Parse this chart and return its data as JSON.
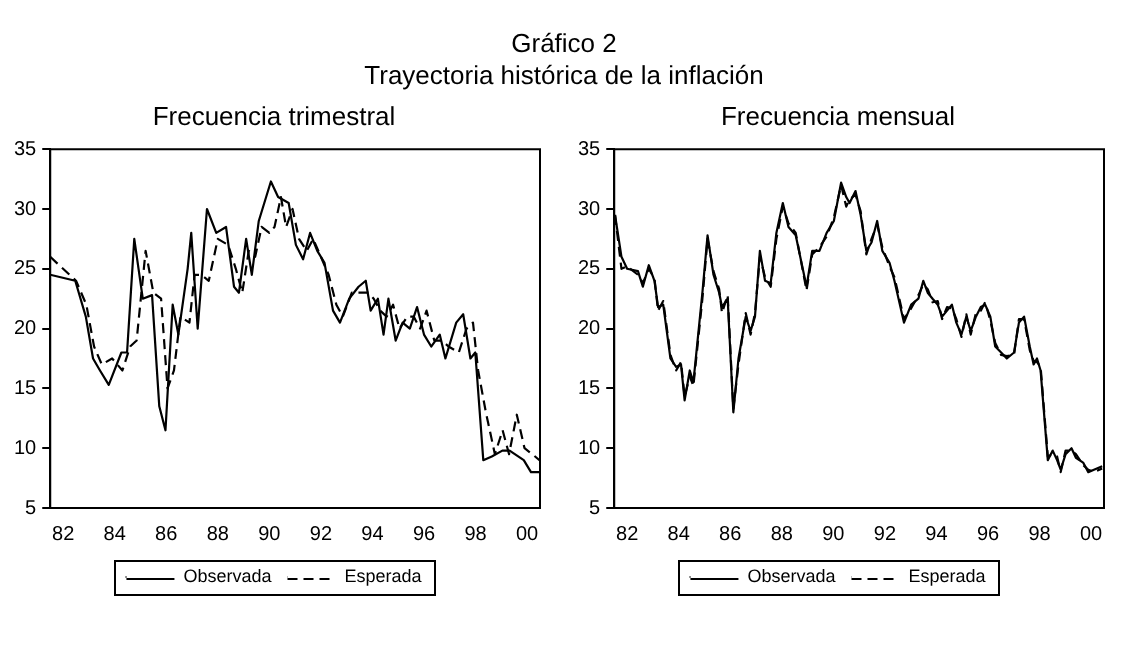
{
  "chart_data": [
    {
      "type": "line",
      "title": "Frecuencia trimestral",
      "annotations": [
        "Gráfico 2",
        "Trayectoria histórica de la inflación"
      ],
      "legend": "bottom",
      "marker": "none",
      "xlim": [
        1981.5,
        2000.5
      ],
      "xticks": [
        {
          "value": 1982,
          "label": "82"
        },
        {
          "value": 1984,
          "label": "84"
        },
        {
          "value": 1986,
          "label": "86"
        },
        {
          "value": 1988,
          "label": "88"
        },
        {
          "value": 1990,
          "label": "90"
        },
        {
          "value": 1992,
          "label": "92"
        },
        {
          "value": 1994,
          "label": "94"
        },
        {
          "value": 1996,
          "label": "96"
        },
        {
          "value": 1998,
          "label": "98"
        },
        {
          "value": 2000,
          "label": "00"
        }
      ],
      "ylim": [
        5,
        35
      ],
      "yticks": [
        5,
        10,
        15,
        20,
        25,
        30,
        35
      ],
      "series": [
        {
          "name": "Observada",
          "color": "#000000",
          "line_style": "solid",
          "x": [
            1981.5,
            1982.47,
            1982.88,
            1983.16,
            1983.43,
            1983.77,
            1984.26,
            1984.48,
            1984.76,
            1985.09,
            1985.45,
            1985.73,
            1985.97,
            1986.25,
            1986.47,
            1986.83,
            1986.97,
            1987.22,
            1987.58,
            1987.94,
            1988.32,
            1988.63,
            1988.82,
            1989.1,
            1989.32,
            1989.59,
            1990.06,
            1990.34,
            1990.75,
            1991.03,
            1991.31,
            1991.58,
            1991.86,
            1992.14,
            1992.47,
            1992.74,
            1993.1,
            1993.46,
            1993.74,
            1993.93,
            1994.21,
            1994.43,
            1994.62,
            1994.9,
            1995.17,
            1995.45,
            1995.73,
            1996.0,
            1996.28,
            1996.61,
            1996.83,
            1997.25,
            1997.52,
            1997.8,
            1997.99,
            1998.3,
            1998.63,
            1999.04,
            1999.32,
            1999.87,
            2000.15,
            2000.48
          ],
          "values": [
            24.5,
            24,
            21,
            17.5,
            16.5,
            15.3,
            18,
            18,
            27.5,
            22.5,
            22.8,
            13.5,
            11.5,
            22,
            19.5,
            25,
            28,
            20,
            30,
            28,
            28.5,
            23.5,
            23,
            27.5,
            24.5,
            29,
            32.3,
            31,
            30.5,
            27,
            25.8,
            28,
            26.5,
            25.5,
            21.5,
            20.5,
            22.5,
            23.5,
            24,
            21.5,
            22.5,
            19.5,
            22.5,
            19,
            20.5,
            20,
            21.8,
            19.5,
            18.5,
            19.5,
            17.5,
            20.5,
            21.2,
            17.5,
            18,
            9,
            9.3,
            9.8,
            9.8,
            9,
            8,
            8
          ]
        },
        {
          "name": "Esperada",
          "color": "#000000",
          "line_style": "dashed",
          "x": [
            1981.5,
            1981.75,
            1982.5,
            1982.9,
            1983.2,
            1983.5,
            1983.9,
            1984.3,
            1984.6,
            1984.85,
            1985.2,
            1985.5,
            1985.8,
            1986.05,
            1986.3,
            1986.55,
            1986.9,
            1987.1,
            1987.35,
            1987.65,
            1988.0,
            1988.4,
            1988.7,
            1988.95,
            1989.2,
            1989.45,
            1989.7,
            1990.0,
            1990.2,
            1990.45,
            1990.65,
            1990.9,
            1991.15,
            1991.45,
            1991.7,
            1992.0,
            1992.3,
            1992.6,
            1992.85,
            1993.2,
            1993.55,
            1993.85,
            1994.05,
            1994.3,
            1994.55,
            1994.8,
            1995.05,
            1995.35,
            1995.6,
            1995.85,
            1996.1,
            1996.4,
            1996.7,
            1996.95,
            1997.35,
            1997.65,
            1997.9,
            1998.1,
            1998.4,
            1998.75,
            1999.05,
            1999.3,
            1999.6,
            1999.9,
            2000.2,
            2000.48
          ],
          "values": [
            26,
            25.5,
            24,
            22,
            18.5,
            17,
            17.5,
            16.5,
            18.5,
            19,
            26.5,
            23,
            22.5,
            15,
            16.5,
            21,
            20.5,
            24.5,
            24.5,
            24,
            27.5,
            27,
            25,
            23,
            26.5,
            26,
            28.5,
            28,
            28.5,
            31,
            28.5,
            30,
            27.5,
            26.5,
            27.5,
            26,
            24.5,
            22,
            21,
            23,
            23,
            23,
            22.5,
            21.5,
            21,
            22,
            20,
            21,
            21,
            20,
            21.5,
            19,
            19,
            18.5,
            18,
            20,
            20.5,
            16.5,
            13,
            9.5,
            11.5,
            9.5,
            12.8,
            10,
            9.5,
            9
          ]
        }
      ]
    },
    {
      "type": "line",
      "title": "Frecuencia mensual",
      "legend": "bottom",
      "marker": "none",
      "xlim": [
        1981.5,
        2000.5
      ],
      "xticks": [
        {
          "value": 1982,
          "label": "82"
        },
        {
          "value": 1984,
          "label": "84"
        },
        {
          "value": 1986,
          "label": "86"
        },
        {
          "value": 1988,
          "label": "88"
        },
        {
          "value": 1990,
          "label": "90"
        },
        {
          "value": 1992,
          "label": "92"
        },
        {
          "value": 1994,
          "label": "94"
        },
        {
          "value": 1996,
          "label": "96"
        },
        {
          "value": 1998,
          "label": "98"
        },
        {
          "value": 2000,
          "label": "00"
        }
      ],
      "ylim": [
        5,
        35
      ],
      "yticks": [
        5,
        10,
        15,
        20,
        25,
        30,
        35
      ],
      "series": [
        {
          "name": "Observada",
          "color": "#000000",
          "line_style": "solid",
          "x": [
            1981.53,
            1981.78,
            1982.0,
            1982.42,
            1982.61,
            1982.84,
            1983.06,
            1983.2,
            1983.4,
            1983.68,
            1983.9,
            1984.09,
            1984.23,
            1984.43,
            1984.57,
            1984.92,
            1985.12,
            1985.35,
            1985.57,
            1985.68,
            1985.9,
            1986.12,
            1986.32,
            1986.6,
            1986.79,
            1986.96,
            1987.15,
            1987.35,
            1987.57,
            1987.79,
            1988.04,
            1988.26,
            1988.54,
            1988.96,
            1989.18,
            1989.46,
            1989.74,
            1990.02,
            1990.3,
            1990.5,
            1990.63,
            1990.86,
            1991.06,
            1991.28,
            1991.48,
            1991.7,
            1991.9,
            1992.18,
            1992.37,
            1992.74,
            1993.02,
            1993.3,
            1993.49,
            1993.66,
            1993.85,
            1994.05,
            1994.22,
            1994.41,
            1994.6,
            1994.77,
            1994.97,
            1995.16,
            1995.33,
            1995.53,
            1995.72,
            1995.89,
            1996.09,
            1996.28,
            1996.51,
            1996.73,
            1997.01,
            1997.2,
            1997.4,
            1997.62,
            1997.77,
            1997.9,
            1998.04,
            1998.32,
            1998.51,
            1998.68,
            1998.82,
            1999.01,
            1999.24,
            1999.41,
            1999.69,
            1999.89,
            2000.11,
            2000.43
          ],
          "values": [
            29.5,
            26,
            25,
            24.8,
            23.5,
            25.3,
            24,
            21.8,
            22,
            17.5,
            16.8,
            17,
            14,
            16.5,
            15.5,
            23,
            27.8,
            24.5,
            23,
            21.8,
            22.5,
            13,
            17.5,
            21,
            19.8,
            21,
            26.5,
            24,
            23.8,
            28,
            30.5,
            28.5,
            27.8,
            23.5,
            26.5,
            26.5,
            28,
            29,
            32.2,
            31,
            30.5,
            31.5,
            29.5,
            26.5,
            27.2,
            29,
            26.5,
            25.5,
            24,
            20.5,
            22,
            22.5,
            24,
            23,
            22.5,
            22,
            21,
            21.5,
            22,
            20.5,
            19.5,
            21,
            19.8,
            21,
            21.8,
            22,
            21,
            18.5,
            18,
            17.5,
            18,
            20.5,
            21,
            18.5,
            17,
            17.5,
            16.5,
            9,
            9.8,
            9,
            8.2,
            9.5,
            10,
            9.2,
            8.8,
            8,
            8.2,
            8.5
          ]
        },
        {
          "name": "Esperada",
          "color": "#000000",
          "line_style": "dashed",
          "x": [
            1981.53,
            1981.78,
            1982.0,
            1982.42,
            1982.61,
            1982.84,
            1983.06,
            1983.2,
            1983.4,
            1983.68,
            1983.9,
            1984.09,
            1984.23,
            1984.43,
            1984.57,
            1984.92,
            1985.12,
            1985.35,
            1985.57,
            1985.68,
            1985.9,
            1986.12,
            1986.32,
            1986.6,
            1986.79,
            1986.96,
            1987.15,
            1987.35,
            1987.57,
            1987.79,
            1988.04,
            1988.26,
            1988.54,
            1988.96,
            1989.18,
            1989.46,
            1989.74,
            1990.02,
            1990.3,
            1990.5,
            1990.63,
            1990.86,
            1991.06,
            1991.28,
            1991.48,
            1991.7,
            1991.9,
            1992.18,
            1992.37,
            1992.74,
            1993.02,
            1993.3,
            1993.49,
            1993.66,
            1993.85,
            1994.05,
            1994.22,
            1994.41,
            1994.6,
            1994.77,
            1994.97,
            1995.16,
            1995.33,
            1995.53,
            1995.72,
            1995.89,
            1996.09,
            1996.28,
            1996.51,
            1996.73,
            1997.01,
            1997.2,
            1997.4,
            1997.62,
            1997.77,
            1997.9,
            1998.04,
            1998.32,
            1998.51,
            1998.68,
            1998.82,
            1999.01,
            1999.24,
            1999.41,
            1999.69,
            1999.89,
            2000.11,
            2000.43
          ],
          "values": [
            29.5,
            25,
            25.2,
            24.5,
            23.8,
            25,
            24.2,
            21.5,
            22.3,
            17.8,
            16.5,
            17.2,
            14.3,
            16,
            15.2,
            22.5,
            27.5,
            24.8,
            23.3,
            21.3,
            22.8,
            13.3,
            17,
            21.3,
            19.5,
            21.3,
            26,
            24.3,
            23.5,
            27.5,
            30.2,
            28.8,
            28,
            23.2,
            26.2,
            26.8,
            27.7,
            29.3,
            32,
            30.2,
            30.8,
            31.2,
            29.8,
            26.2,
            27.5,
            28.7,
            26.8,
            25.2,
            24.3,
            20.8,
            21.7,
            22.8,
            23.7,
            23.3,
            22.2,
            22.3,
            20.8,
            21.8,
            21.7,
            20.8,
            19.3,
            21.2,
            19.5,
            21.3,
            21.5,
            22.2,
            20.7,
            18.8,
            17.8,
            17.7,
            17.8,
            20.8,
            20.8,
            18.2,
            17.3,
            17.2,
            16.8,
            9.3,
            9.5,
            9.3,
            8,
            9.8,
            9.8,
            9.5,
            8.6,
            8.2,
            8,
            8.3
          ]
        }
      ]
    }
  ]
}
